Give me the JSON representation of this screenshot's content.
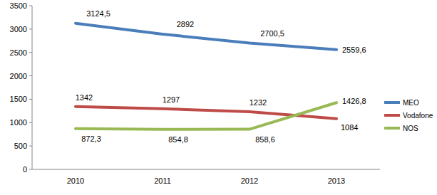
{
  "chart_data": {
    "type": "line",
    "categories": [
      "2010",
      "2011",
      "2012",
      "2013"
    ],
    "series": [
      {
        "name": "MEO",
        "color": "#4a7ebb",
        "values": [
          3124.5,
          2892,
          2700.5,
          2559.6
        ],
        "value_labels": [
          "3124,5",
          "2892",
          "2700,5",
          "2559,6"
        ]
      },
      {
        "name": "Vodafone",
        "color": "#be4b48",
        "values": [
          1342,
          1297,
          1232,
          1084
        ],
        "value_labels": [
          "1342",
          "1297",
          "1232",
          "1084"
        ]
      },
      {
        "name": "NOS",
        "color": "#98b954",
        "values": [
          872.3,
          854.8,
          858.6,
          1426.8
        ],
        "value_labels": [
          "872,3",
          "854,8",
          "858,6",
          "1426,8"
        ]
      }
    ],
    "ylim": [
      0,
      3500
    ],
    "yticks": [
      0,
      500,
      1000,
      1500,
      2000,
      2500,
      3000,
      3500
    ],
    "grid": false,
    "legend": "right",
    "data_labels": true
  }
}
